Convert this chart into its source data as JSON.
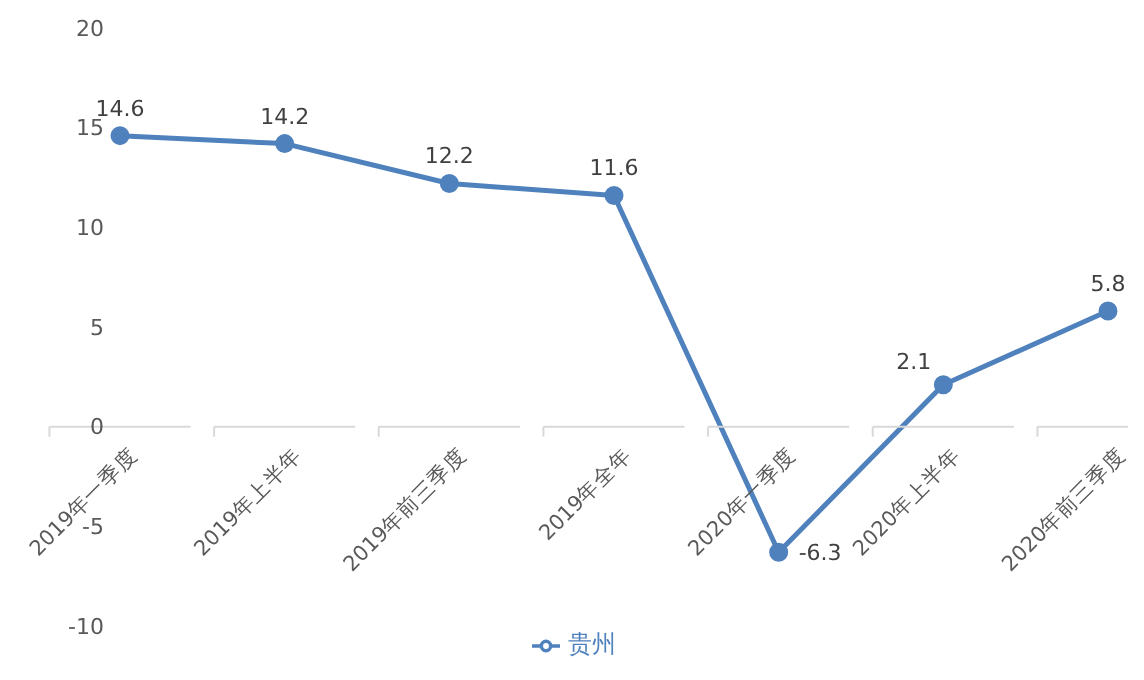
{
  "chart_data": {
    "type": "line",
    "categories": [
      "2019年一季度",
      "2019年上半年",
      "2019年前三季度",
      "2019年全年",
      "2020年一季度",
      "2020年上半年",
      "2020年前三季度"
    ],
    "series": [
      {
        "name": "贵州",
        "color": "#4f81bd",
        "values": [
          14.6,
          14.2,
          12.2,
          11.6,
          -6.3,
          2.1,
          5.8
        ]
      }
    ],
    "ylim": [
      -10,
      20
    ],
    "yticks": [
      -10,
      -5,
      0,
      5,
      10,
      15,
      20
    ],
    "grid": false,
    "legend": "bottom",
    "marker": "circle",
    "data_labels": true
  }
}
